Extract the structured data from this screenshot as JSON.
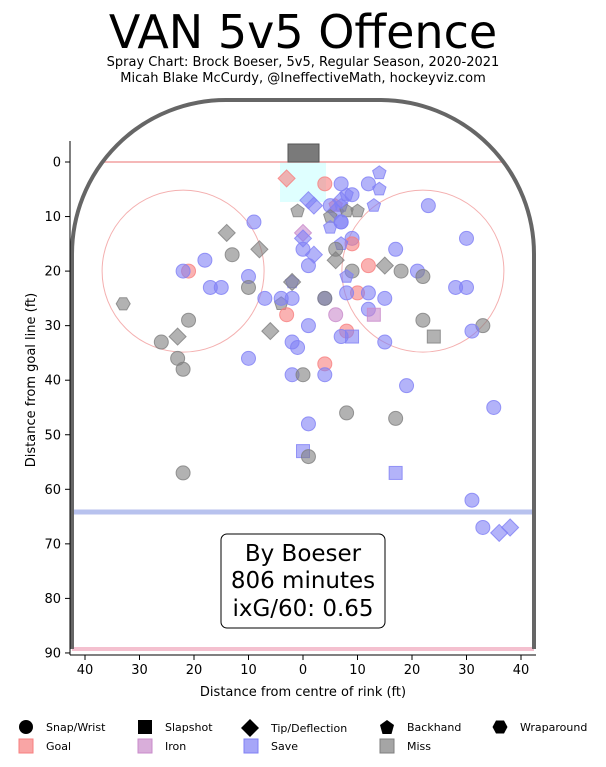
{
  "header": {
    "title": "VAN 5v5 Offence",
    "subtitle1": "Spray Chart: Brock Boeser, 5v5, Regular Season, 2020-2021",
    "subtitle2": "Micah Blake McCurdy, @IneffectiveMath, hockeyviz.com"
  },
  "info_box": {
    "line1": "By Boeser",
    "line2": "806 minutes",
    "line3": "ixG/60: 0.65"
  },
  "legend": {
    "shapes": [
      {
        "label": "Snap/Wrist",
        "icon": "circle"
      },
      {
        "label": "Slapshot",
        "icon": "square"
      },
      {
        "label": "Tip/Deflection",
        "icon": "diamond"
      },
      {
        "label": "Backhand",
        "icon": "pentagon"
      },
      {
        "label": "Wraparound",
        "icon": "hexagon"
      }
    ],
    "outcomes": [
      {
        "label": "Goal",
        "color": "#f77f7f"
      },
      {
        "label": "Iron",
        "color": "#c98bcb"
      },
      {
        "label": "Save",
        "color": "#8080f5"
      },
      {
        "label": "Miss",
        "color": "#7f7f7f"
      }
    ]
  },
  "chart_data": {
    "type": "scatter",
    "xlabel": "Distance from centre of rink (ft)",
    "ylabel": "Distance from goal line (ft)",
    "xlim": [
      42.5,
      -42.5
    ],
    "ylim": [
      90,
      -11
    ],
    "xticks": [
      40,
      30,
      20,
      10,
      0,
      10,
      20,
      30,
      40
    ],
    "yticks": [
      0,
      10,
      20,
      30,
      40,
      50,
      60,
      70,
      80,
      90
    ],
    "outcome_colors": {
      "goal": "#f77f7f",
      "iron": "#c98bcb",
      "save": "#8080f5",
      "miss": "#7f7f7f"
    },
    "points": [
      {
        "x": -14,
        "y": 2,
        "shape": "pentagon",
        "outcome": "save"
      },
      {
        "x": -14,
        "y": 5,
        "shape": "pentagon",
        "outcome": "save"
      },
      {
        "x": -12,
        "y": 4,
        "shape": "circle",
        "outcome": "save"
      },
      {
        "x": -7,
        "y": 4,
        "shape": "circle",
        "outcome": "save"
      },
      {
        "x": 3,
        "y": 3,
        "shape": "diamond",
        "outcome": "goal"
      },
      {
        "x": -4,
        "y": 4,
        "shape": "circle",
        "outcome": "goal"
      },
      {
        "x": -23,
        "y": 8,
        "shape": "circle",
        "outcome": "save"
      },
      {
        "x": -13,
        "y": 8,
        "shape": "pentagon",
        "outcome": "save"
      },
      {
        "x": -8,
        "y": 6,
        "shape": "pentagon",
        "outcome": "save"
      },
      {
        "x": -6,
        "y": 8,
        "shape": "pentagon",
        "outcome": "goal"
      },
      {
        "x": -7,
        "y": 8,
        "shape": "pentagon",
        "outcome": "save"
      },
      {
        "x": -1,
        "y": 7,
        "shape": "diamond",
        "outcome": "save"
      },
      {
        "x": -2,
        "y": 8,
        "shape": "diamond",
        "outcome": "save"
      },
      {
        "x": -5,
        "y": 8,
        "shape": "circle",
        "outcome": "save"
      },
      {
        "x": -6,
        "y": 9,
        "shape": "diamond",
        "outcome": "save"
      },
      {
        "x": -9,
        "y": 6,
        "shape": "circle",
        "outcome": "save"
      },
      {
        "x": -10,
        "y": 9,
        "shape": "pentagon",
        "outcome": "miss"
      },
      {
        "x": -5,
        "y": 10,
        "shape": "pentagon",
        "outcome": "miss"
      },
      {
        "x": 1,
        "y": 9,
        "shape": "pentagon",
        "outcome": "miss"
      },
      {
        "x": -8,
        "y": 9,
        "shape": "pentagon",
        "outcome": "miss"
      },
      {
        "x": -7,
        "y": 7,
        "shape": "diamond",
        "outcome": "save"
      },
      {
        "x": 9,
        "y": 11,
        "shape": "circle",
        "outcome": "save"
      },
      {
        "x": -7,
        "y": 11,
        "shape": "circle",
        "outcome": "save"
      },
      {
        "x": -7,
        "y": 11,
        "shape": "circle",
        "outcome": "save"
      },
      {
        "x": -5,
        "y": 12,
        "shape": "pentagon",
        "outcome": "save"
      },
      {
        "x": 0,
        "y": 13,
        "shape": "diamond",
        "outcome": "iron"
      },
      {
        "x": 0,
        "y": 14,
        "shape": "diamond",
        "outcome": "save"
      },
      {
        "x": 14,
        "y": 13,
        "shape": "diamond",
        "outcome": "miss"
      },
      {
        "x": -9,
        "y": 14,
        "shape": "circle",
        "outcome": "save"
      },
      {
        "x": -9,
        "y": 15,
        "shape": "circle",
        "outcome": "goal"
      },
      {
        "x": -7,
        "y": 15,
        "shape": "pentagon",
        "outcome": "save"
      },
      {
        "x": 8,
        "y": 16,
        "shape": "diamond",
        "outcome": "miss"
      },
      {
        "x": 0,
        "y": 16,
        "shape": "circle",
        "outcome": "save"
      },
      {
        "x": -6,
        "y": 16,
        "shape": "circle",
        "outcome": "miss"
      },
      {
        "x": -2,
        "y": 17,
        "shape": "diamond",
        "outcome": "save"
      },
      {
        "x": -17,
        "y": 16,
        "shape": "circle",
        "outcome": "save"
      },
      {
        "x": -6,
        "y": 18,
        "shape": "diamond",
        "outcome": "miss"
      },
      {
        "x": -15,
        "y": 19,
        "shape": "diamond",
        "outcome": "miss"
      },
      {
        "x": -12,
        "y": 19,
        "shape": "circle",
        "outcome": "goal"
      },
      {
        "x": -9,
        "y": 20,
        "shape": "circle",
        "outcome": "miss"
      },
      {
        "x": -8,
        "y": 21,
        "shape": "pentagon",
        "outcome": "save"
      },
      {
        "x": -18,
        "y": 20,
        "shape": "circle",
        "outcome": "miss"
      },
      {
        "x": -21,
        "y": 20,
        "shape": "circle",
        "outcome": "save"
      },
      {
        "x": 21,
        "y": 20,
        "shape": "circle",
        "outcome": "goal"
      },
      {
        "x": 13,
        "y": 17,
        "shape": "circle",
        "outcome": "miss"
      },
      {
        "x": 22,
        "y": 20,
        "shape": "circle",
        "outcome": "save"
      },
      {
        "x": 18,
        "y": 18,
        "shape": "circle",
        "outcome": "save"
      },
      {
        "x": 10,
        "y": 21,
        "shape": "circle",
        "outcome": "save"
      },
      {
        "x": -30,
        "y": 14,
        "shape": "circle",
        "outcome": "save"
      },
      {
        "x": -22,
        "y": 21,
        "shape": "circle",
        "outcome": "miss"
      },
      {
        "x": -1,
        "y": 19,
        "shape": "circle",
        "outcome": "save"
      },
      {
        "x": 2,
        "y": 22,
        "shape": "pentagon",
        "outcome": "save"
      },
      {
        "x": 4,
        "y": 26,
        "shape": "pentagon",
        "outcome": "miss"
      },
      {
        "x": 2,
        "y": 22,
        "shape": "diamond",
        "outcome": "miss"
      },
      {
        "x": 17,
        "y": 23,
        "shape": "circle",
        "outcome": "save"
      },
      {
        "x": 15,
        "y": 23,
        "shape": "circle",
        "outcome": "save"
      },
      {
        "x": 10,
        "y": 23,
        "shape": "circle",
        "outcome": "miss"
      },
      {
        "x": -28,
        "y": 23,
        "shape": "circle",
        "outcome": "save"
      },
      {
        "x": -30,
        "y": 23,
        "shape": "circle",
        "outcome": "save"
      },
      {
        "x": -10,
        "y": 24,
        "shape": "circle",
        "outcome": "goal"
      },
      {
        "x": -12,
        "y": 24,
        "shape": "circle",
        "outcome": "save"
      },
      {
        "x": -8,
        "y": 24,
        "shape": "circle",
        "outcome": "save"
      },
      {
        "x": 7,
        "y": 25,
        "shape": "circle",
        "outcome": "save"
      },
      {
        "x": 2,
        "y": 25,
        "shape": "circle",
        "outcome": "save"
      },
      {
        "x": 4,
        "y": 25,
        "shape": "circle",
        "outcome": "save"
      },
      {
        "x": -4,
        "y": 25,
        "shape": "circle",
        "outcome": "save"
      },
      {
        "x": -4,
        "y": 25,
        "shape": "circle",
        "outcome": "miss"
      },
      {
        "x": -15,
        "y": 25,
        "shape": "circle",
        "outcome": "save"
      },
      {
        "x": 33,
        "y": 26,
        "shape": "hexagon",
        "outcome": "miss"
      },
      {
        "x": -12,
        "y": 27,
        "shape": "circle",
        "outcome": "save"
      },
      {
        "x": -6,
        "y": 28,
        "shape": "circle",
        "outcome": "iron"
      },
      {
        "x": -13,
        "y": 28,
        "shape": "square",
        "outcome": "iron"
      },
      {
        "x": 3,
        "y": 28,
        "shape": "circle",
        "outcome": "goal"
      },
      {
        "x": 21,
        "y": 29,
        "shape": "circle",
        "outcome": "miss"
      },
      {
        "x": -22,
        "y": 29,
        "shape": "circle",
        "outcome": "miss"
      },
      {
        "x": -1,
        "y": 30,
        "shape": "circle",
        "outcome": "save"
      },
      {
        "x": -33,
        "y": 30,
        "shape": "circle",
        "outcome": "miss"
      },
      {
        "x": 6,
        "y": 31,
        "shape": "diamond",
        "outcome": "miss"
      },
      {
        "x": -31,
        "y": 31,
        "shape": "circle",
        "outcome": "save"
      },
      {
        "x": -8,
        "y": 31,
        "shape": "circle",
        "outcome": "goal"
      },
      {
        "x": 23,
        "y": 32,
        "shape": "diamond",
        "outcome": "miss"
      },
      {
        "x": -7,
        "y": 32,
        "shape": "circle",
        "outcome": "save"
      },
      {
        "x": -9,
        "y": 32,
        "shape": "square",
        "outcome": "save"
      },
      {
        "x": -24,
        "y": 32,
        "shape": "square",
        "outcome": "miss"
      },
      {
        "x": 26,
        "y": 33,
        "shape": "circle",
        "outcome": "miss"
      },
      {
        "x": 2,
        "y": 33,
        "shape": "circle",
        "outcome": "save"
      },
      {
        "x": -15,
        "y": 33,
        "shape": "circle",
        "outcome": "save"
      },
      {
        "x": 1,
        "y": 34,
        "shape": "circle",
        "outcome": "save"
      },
      {
        "x": 23,
        "y": 36,
        "shape": "circle",
        "outcome": "miss"
      },
      {
        "x": 10,
        "y": 36,
        "shape": "circle",
        "outcome": "save"
      },
      {
        "x": -4,
        "y": 37,
        "shape": "circle",
        "outcome": "goal"
      },
      {
        "x": 22,
        "y": 38,
        "shape": "circle",
        "outcome": "miss"
      },
      {
        "x": 2,
        "y": 39,
        "shape": "circle",
        "outcome": "save"
      },
      {
        "x": 0,
        "y": 39,
        "shape": "circle",
        "outcome": "miss"
      },
      {
        "x": -4,
        "y": 39,
        "shape": "circle",
        "outcome": "save"
      },
      {
        "x": -19,
        "y": 41,
        "shape": "circle",
        "outcome": "save"
      },
      {
        "x": -35,
        "y": 45,
        "shape": "circle",
        "outcome": "save"
      },
      {
        "x": -8,
        "y": 46,
        "shape": "circle",
        "outcome": "miss"
      },
      {
        "x": -17,
        "y": 47,
        "shape": "circle",
        "outcome": "miss"
      },
      {
        "x": -1,
        "y": 48,
        "shape": "circle",
        "outcome": "save"
      },
      {
        "x": 0,
        "y": 53,
        "shape": "square",
        "outcome": "save"
      },
      {
        "x": -1,
        "y": 54,
        "shape": "circle",
        "outcome": "miss"
      },
      {
        "x": 22,
        "y": 57,
        "shape": "circle",
        "outcome": "miss"
      },
      {
        "x": -17,
        "y": 57,
        "shape": "square",
        "outcome": "save"
      },
      {
        "x": -31,
        "y": 62,
        "shape": "circle",
        "outcome": "save"
      },
      {
        "x": -33,
        "y": 67,
        "shape": "circle",
        "outcome": "save"
      },
      {
        "x": -38,
        "y": 67,
        "shape": "diamond",
        "outcome": "save"
      },
      {
        "x": -36,
        "y": 68,
        "shape": "diamond",
        "outcome": "save"
      }
    ]
  }
}
